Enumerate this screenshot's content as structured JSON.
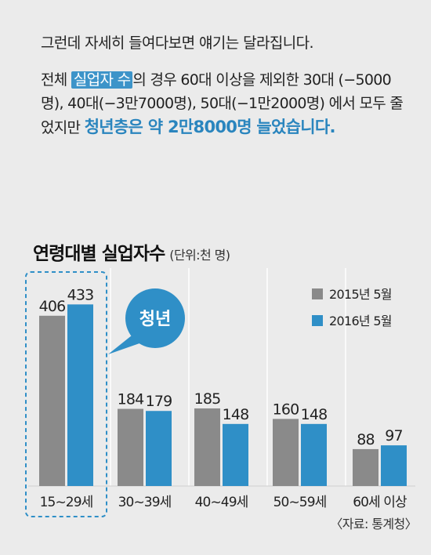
{
  "intro": {
    "line1": "그런데 자세히 들여다보면 얘기는 달라집니다.",
    "p_before_hl": "전체 ",
    "p_hl": "실업자 수",
    "p_after_hl": "의 경우 60대 이상을 제외한 30대 (−5000명), 40대(−3만7000명), 50대(−1만2000명) 에서 모두 줄었지만 ",
    "p_emph": "청년층은 약 2만8000명 늘었습니다."
  },
  "chart_title": "연령대별 실업자수",
  "chart_unit": "(단위:천 명)",
  "callout": "청년",
  "source": "〈자료: 통계청〉",
  "colors": {
    "series_2015": "#8a8a8a",
    "series_2016": "#2f8fc7",
    "accent": "#2f8fc7",
    "grid": "#ffffff"
  },
  "chart_data": {
    "type": "bar",
    "title": "연령대별 실업자수",
    "unit": "(단위:천 명)",
    "categories": [
      "15~29세",
      "30~39세",
      "40~49세",
      "50~59세",
      "60세 이상"
    ],
    "series": [
      {
        "name": "2015년 5월",
        "values": [
          406,
          184,
          185,
          160,
          88
        ]
      },
      {
        "name": "2016년 5월",
        "values": [
          433,
          179,
          148,
          148,
          97
        ]
      }
    ],
    "highlight_category": "15~29세",
    "legend_position": "top-right",
    "grid": true
  }
}
